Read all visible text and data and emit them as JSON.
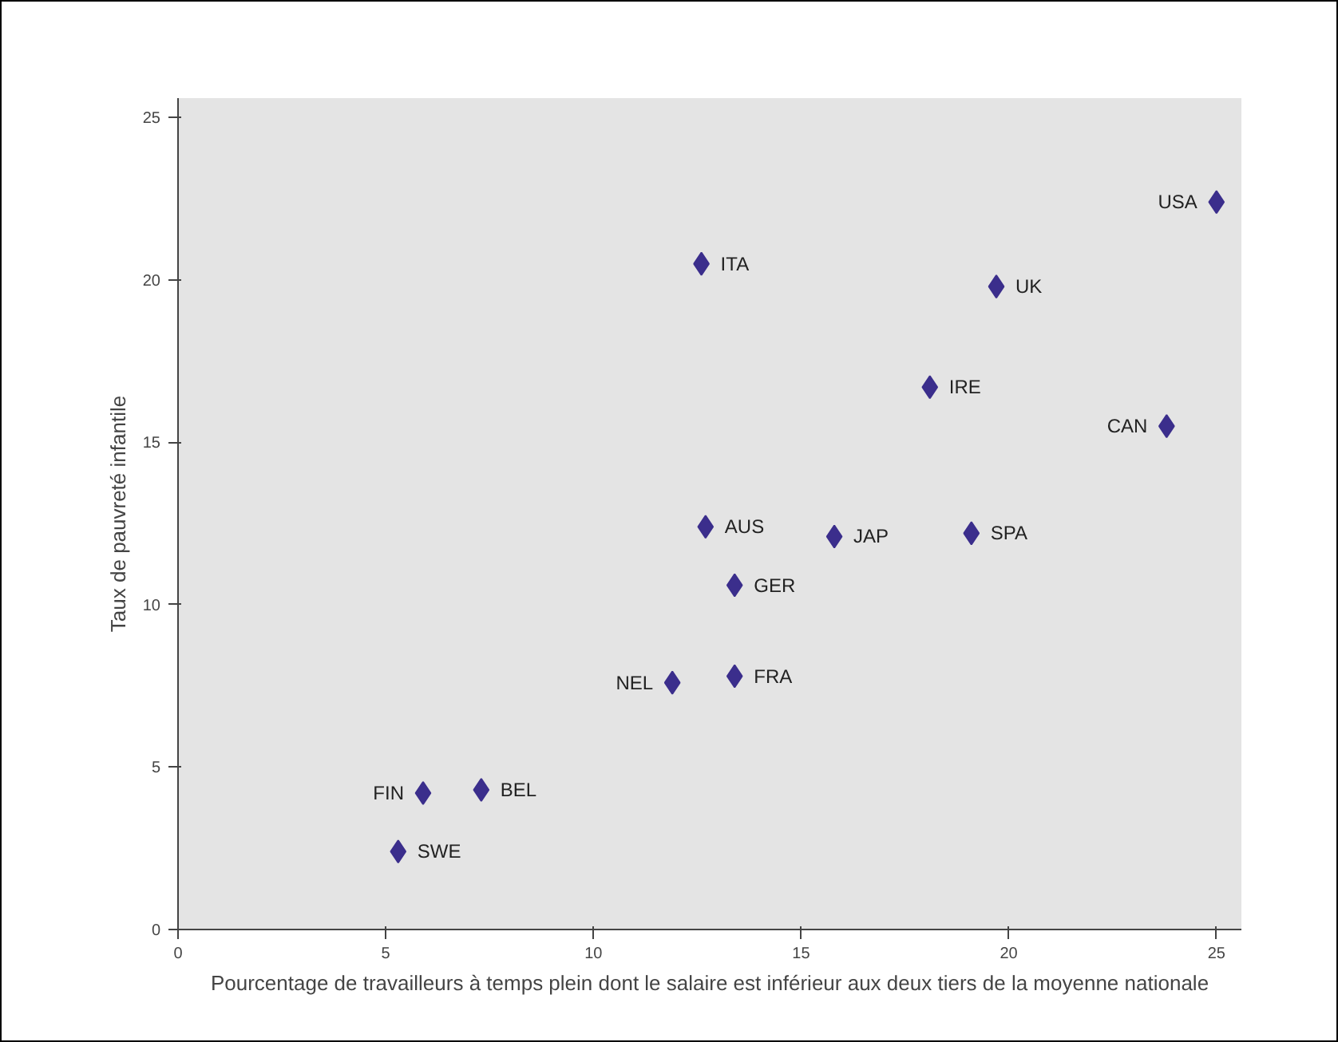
{
  "chart_data": {
    "type": "scatter",
    "xlabel": "Pourcentage de travailleurs à temps plein dont le salaire est inférieur aux deux tiers de la moyenne nationale",
    "ylabel": "Taux de pauvreté infantile",
    "x": [
      25.0,
      12.6,
      19.7,
      18.1,
      23.8,
      12.7,
      15.8,
      19.1,
      13.4,
      11.9,
      13.4,
      5.9,
      7.3,
      5.3
    ],
    "series": [
      {
        "color": "#3b2e8c",
        "values": [
          22.4,
          20.5,
          19.8,
          16.7,
          15.5,
          12.4,
          12.1,
          12.2,
          10.6,
          7.6,
          7.8,
          4.2,
          4.3,
          2.4
        ]
      }
    ],
    "annotations": [
      {
        "text": "USA",
        "x": 25.0,
        "y": 22.4
      },
      {
        "text": "ITA",
        "x": 12.6,
        "y": 20.5
      },
      {
        "text": "UK",
        "x": 19.7,
        "y": 19.8
      },
      {
        "text": "IRE",
        "x": 18.1,
        "y": 16.7
      },
      {
        "text": "CAN",
        "x": 23.8,
        "y": 15.5
      },
      {
        "text": "AUS",
        "x": 12.7,
        "y": 12.4
      },
      {
        "text": "JAP",
        "x": 15.8,
        "y": 12.1
      },
      {
        "text": "SPA",
        "x": 19.1,
        "y": 12.2
      },
      {
        "text": "GER",
        "x": 13.4,
        "y": 10.6
      },
      {
        "text": "NEL",
        "x": 11.9,
        "y": 7.6
      },
      {
        "text": "FRA",
        "x": 13.4,
        "y": 7.8
      },
      {
        "text": "FIN",
        "x": 5.9,
        "y": 4.2
      },
      {
        "text": "BEL",
        "x": 7.3,
        "y": 4.3
      },
      {
        "text": "SWE",
        "x": 5.3,
        "y": 2.4
      }
    ],
    "xlim": [
      0,
      25.6
    ],
    "ylim": [
      0,
      25.6
    ],
    "xticks": [
      0,
      5,
      10,
      15,
      20,
      25
    ],
    "yticks": [
      0,
      5,
      10,
      15,
      20,
      25
    ],
    "marker": "diamond"
  }
}
